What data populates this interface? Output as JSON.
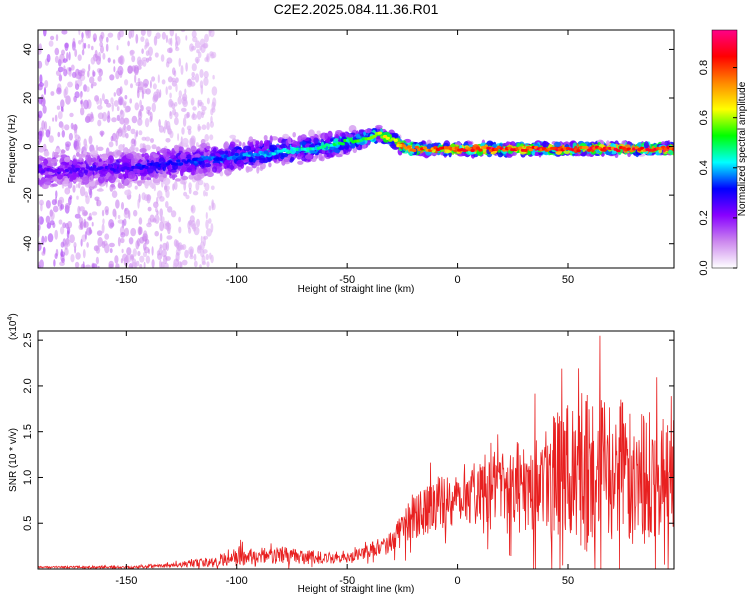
{
  "chart_data": [
    {
      "type": "heatmap",
      "title": "C2E2.2025.084.11.36.R01",
      "xlabel": "Height of straight line (km)",
      "ylabel": "Frequency (Hz)",
      "xlim": [
        -190,
        98
      ],
      "ylim": [
        -50,
        48
      ],
      "xticks": [
        -150,
        -100,
        -50,
        0,
        50
      ],
      "xtick_labels": [
        "-150",
        "-100",
        "-50",
        "0",
        "50"
      ],
      "yticks": [
        -40,
        -20,
        0,
        20,
        40
      ],
      "ytick_labels": [
        "-40",
        "-20",
        "0",
        "20",
        "40"
      ],
      "ridge": {
        "x": [
          -190,
          -150,
          -120,
          -100,
          -80,
          -60,
          -50,
          -40,
          -35,
          -30,
          -25,
          -20,
          0,
          50,
          98
        ],
        "y": [
          -10,
          -9,
          -6,
          -4,
          -2,
          0,
          2,
          4,
          5,
          3,
          0,
          -1,
          -1,
          -1,
          -1
        ],
        "spread": [
          12,
          11,
          10,
          9,
          8,
          7,
          6,
          5,
          4,
          4,
          4,
          3,
          3,
          3,
          3
        ],
        "amplitude": [
          0.25,
          0.3,
          0.35,
          0.4,
          0.45,
          0.5,
          0.55,
          0.6,
          0.65,
          0.7,
          0.8,
          0.85,
          0.9,
          0.9,
          0.9
        ]
      },
      "colorbar": {
        "label": "Normalized spectral amplitude",
        "range": [
          0,
          0.95
        ],
        "ticks": [
          0.0,
          0.2,
          0.4,
          0.6,
          0.8
        ],
        "tick_labels": [
          "0.0",
          "0.2",
          "0.4",
          "0.6",
          "0.8"
        ],
        "colors": [
          "#ffffff",
          "#cc88ee",
          "#8800ff",
          "#0000ff",
          "#00ffff",
          "#00ff00",
          "#ffff00",
          "#ff8800",
          "#ff0000",
          "#ff0088"
        ]
      }
    },
    {
      "type": "line",
      "xlabel": "Height of straight line (km)",
      "ylabel": "SNR (10 * v/v)",
      "scale_label": "(x10",
      "scale_exp": "4",
      "scale_close": ")",
      "xlim": [
        -190,
        98
      ],
      "ylim": [
        0,
        2.6
      ],
      "xticks": [
        -150,
        -100,
        -50,
        0,
        50
      ],
      "xtick_labels": [
        "-150",
        "-100",
        "-50",
        "0",
        "50"
      ],
      "yticks": [
        0.5,
        1.0,
        1.5,
        2.0,
        2.5
      ],
      "ytick_labels": [
        "0.5",
        "1.0",
        "1.5",
        "2.0",
        "2.5"
      ],
      "line_color": "#e82020",
      "envelope": {
        "x": [
          -190,
          -150,
          -130,
          -110,
          -100,
          -90,
          -80,
          -60,
          -50,
          -40,
          -35,
          -30,
          -25,
          -22,
          -15,
          0,
          20,
          40,
          50,
          60,
          75,
          90,
          98
        ],
        "base": [
          0.02,
          0.02,
          0.04,
          0.08,
          0.15,
          0.12,
          0.15,
          0.12,
          0.12,
          0.2,
          0.25,
          0.3,
          0.4,
          0.55,
          0.65,
          0.8,
          0.9,
          1.0,
          1.05,
          1.05,
          1.05,
          1.0,
          1.0
        ],
        "amp": [
          0.01,
          0.02,
          0.03,
          0.07,
          0.15,
          0.1,
          0.12,
          0.08,
          0.06,
          0.1,
          0.12,
          0.18,
          0.25,
          0.3,
          0.35,
          0.4,
          0.5,
          0.8,
          1.0,
          1.1,
          1.0,
          0.9,
          0.7
        ]
      }
    }
  ]
}
